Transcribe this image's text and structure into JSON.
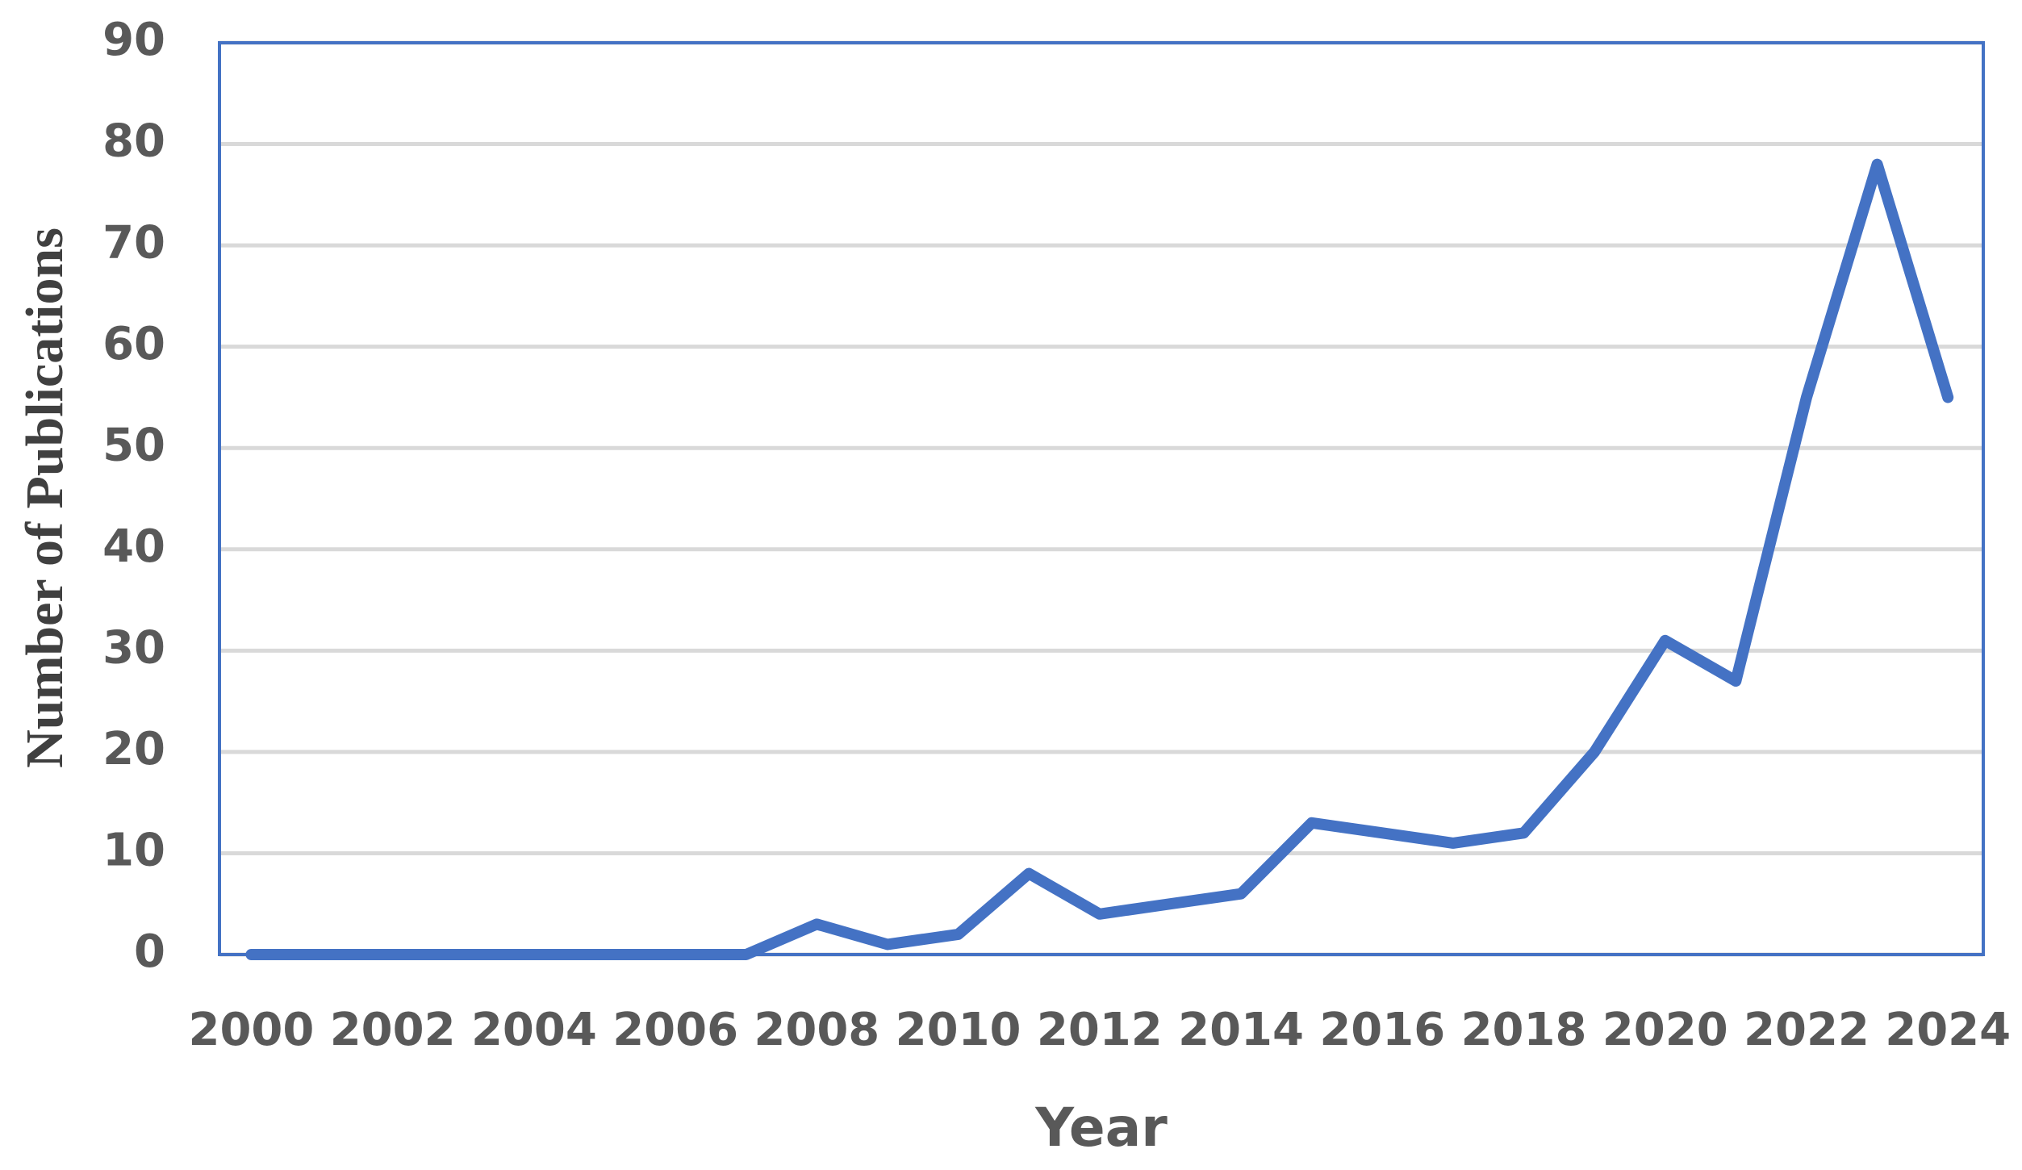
{
  "chart_data": {
    "type": "line",
    "x_label": "Year",
    "y_label": "Number of Publications",
    "x": [
      2000,
      2001,
      2002,
      2003,
      2004,
      2005,
      2006,
      2007,
      2008,
      2009,
      2010,
      2011,
      2012,
      2013,
      2014,
      2015,
      2016,
      2017,
      2018,
      2019,
      2020,
      2021,
      2022,
      2023,
      2024
    ],
    "series": [
      {
        "color": "#4472c4",
        "values": [
          0,
          0,
          0,
          0,
          0,
          0,
          0,
          0,
          3,
          1,
          2,
          8,
          4,
          5,
          6,
          13,
          12,
          11,
          12,
          20,
          31,
          27,
          55,
          78,
          55
        ]
      }
    ],
    "xlim": [
      1999.55,
      2024.5
    ],
    "xticks": [
      2000,
      2002,
      2004,
      2006,
      2008,
      2010,
      2012,
      2014,
      2016,
      2018,
      2020,
      2022,
      2024
    ],
    "ylim": [
      0,
      90
    ],
    "yticks": [
      0,
      10,
      20,
      30,
      40,
      50,
      60,
      70,
      80,
      90
    ],
    "grid": true
  }
}
